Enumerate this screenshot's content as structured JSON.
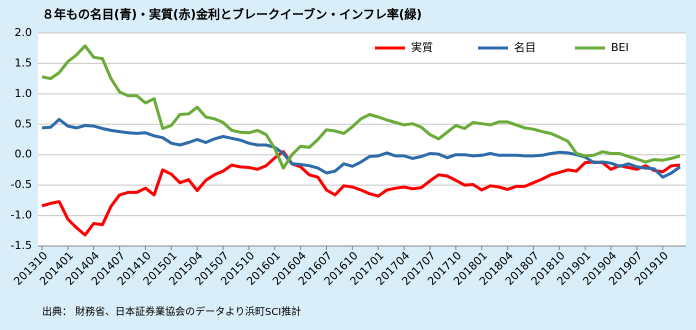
{
  "chart_data": {
    "type": "line",
    "title": "８年もの名目(青)・実質(赤)金利とブレークイーブン・インフレ率(緑)",
    "source": "出典： 財務省、日本証券業協会のデータより浜町SCI推計",
    "categories": [
      "201310",
      null,
      null,
      "201401",
      null,
      null,
      "201404",
      null,
      null,
      "201407",
      null,
      null,
      "201410",
      null,
      null,
      "201501",
      null,
      null,
      "201504",
      null,
      null,
      "201507",
      null,
      null,
      "201510",
      null,
      null,
      "201601",
      null,
      null,
      "201604",
      null,
      null,
      "201607",
      null,
      null,
      "201610",
      null,
      null,
      "201701",
      null,
      null,
      "201704",
      null,
      null,
      "201707",
      null,
      null,
      "201710",
      null,
      null,
      "201801",
      null,
      null,
      "201804",
      null,
      null,
      "201807",
      null,
      null,
      "201810",
      null,
      null,
      "201901",
      null,
      null,
      "201904",
      null,
      null,
      "201907",
      null,
      null,
      "201910",
      null,
      null
    ],
    "series": [
      {
        "name": "実質",
        "color": "#ff0000",
        "values": [
          -0.84,
          -0.8,
          -0.77,
          -1.06,
          -1.2,
          -1.32,
          -1.13,
          -1.15,
          -0.85,
          -0.66,
          -0.62,
          -0.62,
          -0.55,
          -0.66,
          -0.25,
          -0.32,
          -0.46,
          -0.41,
          -0.59,
          -0.42,
          -0.33,
          -0.27,
          -0.17,
          -0.2,
          -0.21,
          -0.24,
          -0.18,
          -0.05,
          0.05,
          -0.15,
          -0.2,
          -0.33,
          -0.37,
          -0.58,
          -0.66,
          -0.51,
          -0.53,
          -0.58,
          -0.64,
          -0.68,
          -0.58,
          -0.55,
          -0.53,
          -0.56,
          -0.54,
          -0.43,
          -0.33,
          -0.35,
          -0.42,
          -0.5,
          -0.49,
          -0.58,
          -0.51,
          -0.53,
          -0.57,
          -0.52,
          -0.52,
          -0.46,
          -0.4,
          -0.33,
          -0.29,
          -0.25,
          -0.27,
          -0.13,
          -0.12,
          -0.13,
          -0.24,
          -0.18,
          -0.21,
          -0.24,
          -0.18,
          -0.26,
          -0.28,
          -0.18,
          -0.17
        ]
      },
      {
        "name": "名目",
        "color": "#2e6ba8",
        "values": [
          0.44,
          0.45,
          0.58,
          0.47,
          0.44,
          0.48,
          0.47,
          0.43,
          0.4,
          0.38,
          0.36,
          0.35,
          0.36,
          0.31,
          0.28,
          0.19,
          0.16,
          0.2,
          0.25,
          0.2,
          0.26,
          0.3,
          0.27,
          0.24,
          0.19,
          0.16,
          0.16,
          0.12,
          0.02,
          -0.15,
          -0.16,
          -0.18,
          -0.22,
          -0.3,
          -0.27,
          -0.15,
          -0.19,
          -0.12,
          -0.03,
          -0.02,
          0.03,
          -0.02,
          -0.02,
          -0.06,
          -0.03,
          0.02,
          0.01,
          -0.05,
          0.0,
          0.0,
          -0.02,
          -0.01,
          0.02,
          -0.01,
          -0.01,
          -0.01,
          -0.02,
          -0.02,
          -0.01,
          0.02,
          0.04,
          0.03,
          0.0,
          -0.04,
          -0.13,
          -0.12,
          -0.14,
          -0.19,
          -0.15,
          -0.2,
          -0.22,
          -0.23,
          -0.37,
          -0.3,
          -0.2
        ]
      },
      {
        "name": "BEI",
        "color": "#6aab3a",
        "values": [
          1.28,
          1.25,
          1.35,
          1.53,
          1.64,
          1.79,
          1.6,
          1.58,
          1.25,
          1.03,
          0.97,
          0.97,
          0.85,
          0.92,
          0.43,
          0.48,
          0.66,
          0.67,
          0.78,
          0.62,
          0.59,
          0.53,
          0.4,
          0.37,
          0.36,
          0.4,
          0.33,
          0.1,
          -0.22,
          0.0,
          0.14,
          0.12,
          0.25,
          0.41,
          0.39,
          0.35,
          0.46,
          0.59,
          0.66,
          0.62,
          0.57,
          0.53,
          0.49,
          0.51,
          0.45,
          0.33,
          0.26,
          0.37,
          0.48,
          0.43,
          0.53,
          0.51,
          0.49,
          0.54,
          0.54,
          0.49,
          0.44,
          0.42,
          0.38,
          0.35,
          0.29,
          0.22,
          0.02,
          -0.02,
          -0.01,
          0.05,
          0.02,
          0.02,
          -0.03,
          -0.07,
          -0.12,
          -0.08,
          -0.09,
          -0.06,
          -0.02
        ]
      }
    ],
    "ylim": [
      -1.5,
      2
    ],
    "yticks": [
      {
        "value": 2,
        "label": "2.0"
      },
      1.5,
      {
        "value": 1,
        "label": "1.0"
      },
      0.5,
      {
        "value": 0,
        "label": "0.0"
      },
      -0.5,
      {
        "value": -1,
        "label": "-1.0"
      },
      -1.5
    ],
    "grid": true,
    "legend": "top"
  }
}
